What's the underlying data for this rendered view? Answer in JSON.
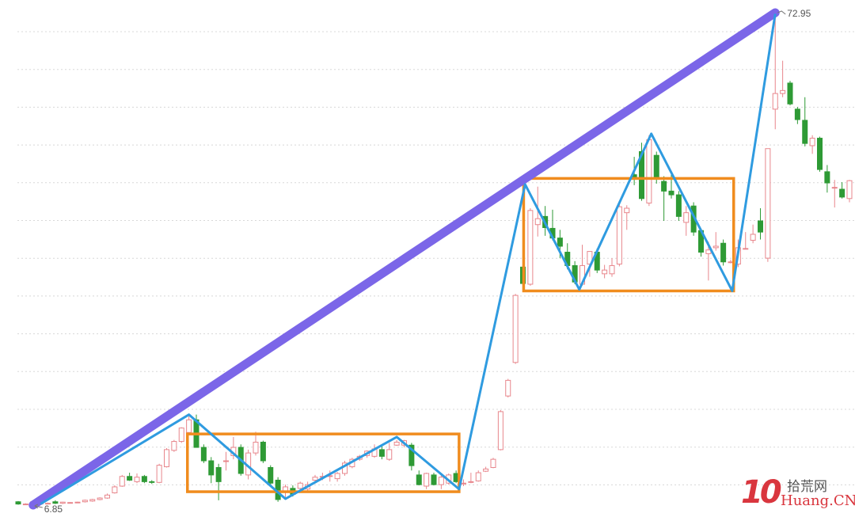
{
  "chart_data": {
    "type": "candlestick",
    "title": "",
    "xlabel": "",
    "ylabel": "",
    "ylim": [
      6.85,
      72.95
    ],
    "grid": true,
    "annotations": {
      "high_label": "72.95",
      "low_label": "6.85",
      "high_index": 102,
      "low_index": 2
    },
    "colors": {
      "up": "#e8868c",
      "down": "#2e9a35",
      "trendline": "#7b66e8",
      "zigzag": "#2f9be0",
      "box": "#f08c1e",
      "grid": "#d8d8d8"
    },
    "candles_ohlc": [
      [
        7.3,
        7.4,
        6.9,
        7.0
      ],
      [
        7.0,
        7.1,
        6.9,
        7.0
      ],
      [
        7.0,
        7.4,
        6.85,
        7.3
      ],
      [
        7.1,
        7.2,
        7.0,
        7.1
      ],
      [
        7.1,
        7.2,
        7.0,
        7.1
      ],
      [
        7.3,
        7.5,
        7.0,
        7.1
      ],
      [
        7.1,
        7.3,
        7.0,
        7.25
      ],
      [
        7.2,
        7.25,
        7.15,
        7.2
      ],
      [
        7.25,
        7.3,
        7.2,
        7.25
      ],
      [
        7.3,
        7.6,
        7.2,
        7.5
      ],
      [
        7.4,
        7.7,
        7.3,
        7.6
      ],
      [
        7.6,
        7.9,
        7.5,
        7.8
      ],
      [
        7.8,
        8.4,
        7.7,
        8.2
      ],
      [
        8.5,
        9.5,
        8.4,
        9.3
      ],
      [
        9.4,
        10.9,
        9.3,
        10.7
      ],
      [
        10.7,
        11.2,
        10.1,
        10.2
      ],
      [
        10.0,
        11.1,
        9.8,
        10.6
      ],
      [
        10.7,
        10.9,
        9.8,
        10.0
      ],
      [
        10.0,
        10.2,
        9.7,
        9.9
      ],
      [
        9.9,
        12.4,
        9.8,
        12.2
      ],
      [
        12.0,
        14.5,
        11.9,
        14.3
      ],
      [
        14.2,
        15.6,
        14.0,
        15.4
      ],
      [
        15.4,
        17.3,
        15.2,
        17.2
      ],
      [
        16.6,
        19.1,
        16.4,
        18.3
      ],
      [
        18.3,
        19.0,
        14.6,
        14.6
      ],
      [
        14.6,
        15.0,
        12.5,
        12.8
      ],
      [
        12.8,
        13.3,
        9.8,
        10.9
      ],
      [
        11.9,
        12.4,
        7.5,
        10.0
      ],
      [
        12.8,
        14.0,
        11.5,
        12.8
      ],
      [
        13.5,
        16.0,
        13.0,
        14.6
      ],
      [
        14.6,
        15.0,
        10.8,
        11.1
      ],
      [
        10.9,
        14.3,
        10.3,
        13.85
      ],
      [
        13.85,
        16.7,
        13.5,
        15.3
      ],
      [
        15.3,
        15.5,
        12.5,
        12.8
      ],
      [
        11.9,
        12.2,
        9.5,
        9.8
      ],
      [
        10.2,
        10.6,
        7.3,
        7.6
      ],
      [
        8.55,
        9.6,
        7.8,
        9.3
      ],
      [
        9.1,
        9.5,
        8.0,
        8.3
      ],
      [
        9.1,
        10.0,
        8.8,
        9.8
      ],
      [
        9.0,
        10.0,
        8.8,
        9.6
      ],
      [
        10.2,
        10.9,
        10.0,
        10.6
      ],
      [
        10.7,
        11.2,
        10.2,
        10.7
      ],
      [
        10.8,
        11.5,
        10.0,
        10.8
      ],
      [
        10.4,
        11.3,
        10.0,
        11.1
      ],
      [
        11.1,
        12.8,
        10.8,
        12.5
      ],
      [
        12.0,
        13.2,
        11.8,
        13.0
      ],
      [
        13.0,
        13.6,
        12.8,
        13.4
      ],
      [
        13.5,
        14.2,
        13.2,
        14.1
      ],
      [
        13.4,
        15.0,
        13.2,
        14.4
      ],
      [
        14.3,
        15.0,
        13.0,
        13.4
      ],
      [
        13.0,
        15.2,
        12.8,
        14.3
      ],
      [
        14.9,
        15.6,
        14.8,
        15.3
      ],
      [
        14.9,
        15.6,
        14.6,
        15.5
      ],
      [
        14.9,
        15.2,
        11.5,
        12.15
      ],
      [
        10.9,
        11.5,
        9.5,
        9.6
      ],
      [
        9.4,
        11.2,
        9.0,
        11.1
      ],
      [
        10.9,
        11.2,
        9.5,
        9.6
      ],
      [
        9.6,
        11.0,
        9.0,
        10.6
      ],
      [
        9.8,
        11.1,
        9.6,
        10.9
      ],
      [
        11.1,
        11.5,
        9.8,
        10.0
      ],
      [
        9.8,
        10.3,
        9.4,
        9.8
      ],
      [
        10.0,
        11.2,
        9.8,
        10.0
      ],
      [
        10.1,
        11.5,
        10.0,
        11.2
      ],
      [
        11.4,
        12.0,
        11.3,
        11.7
      ],
      [
        11.9,
        13.2,
        11.8,
        13.0
      ],
      [
        14.3,
        19.6,
        14.2,
        19.4
      ],
      [
        21.5,
        23.8,
        21.3,
        23.6
      ],
      [
        26.0,
        35.2,
        25.8,
        35.0
      ],
      [
        38.8,
        42.7,
        36.0,
        36.6
      ],
      [
        36.5,
        46.7,
        36.3,
        46.4
      ],
      [
        44.5,
        49.6,
        42.9,
        45.3
      ],
      [
        45.6,
        47.0,
        43.0,
        44.1
      ],
      [
        44.0,
        46.5,
        42.4,
        42.7
      ],
      [
        42.7,
        43.8,
        40.0,
        41.6
      ],
      [
        40.8,
        42.0,
        38.5,
        39.0
      ],
      [
        39.0,
        39.6,
        36.5,
        36.8
      ],
      [
        36.5,
        41.8,
        36.3,
        39.0
      ],
      [
        39.2,
        40.8,
        37.5,
        40.9
      ],
      [
        40.8,
        41.3,
        38.0,
        38.4
      ],
      [
        37.9,
        39.1,
        37.3,
        38.4
      ],
      [
        37.9,
        40.0,
        37.5,
        39.0
      ],
      [
        39.2,
        47.2,
        38.9,
        46.9
      ],
      [
        46.1,
        47.1,
        43.8,
        46.7
      ],
      [
        51.2,
        53.6,
        49.8,
        50.6
      ],
      [
        54.3,
        55.5,
        47.7,
        48.0
      ],
      [
        47.4,
        56.5,
        47.0,
        55.9
      ],
      [
        53.8,
        54.3,
        50.0,
        50.6
      ],
      [
        50.3,
        51.0,
        45.0,
        49.0
      ],
      [
        49.0,
        51.5,
        48.0,
        48.5
      ],
      [
        48.5,
        49.0,
        45.0,
        45.6
      ],
      [
        44.8,
        47.0,
        43.0,
        46.1
      ],
      [
        47.0,
        47.5,
        43.0,
        43.5
      ],
      [
        43.7,
        44.0,
        40.2,
        40.8
      ],
      [
        40.6,
        42.2,
        37.0,
        41.1
      ],
      [
        41.4,
        43.5,
        41.0,
        41.6
      ],
      [
        42.0,
        42.5,
        39.0,
        39.5
      ],
      [
        39.5,
        39.8,
        39.3,
        39.5
      ],
      [
        39.2,
        42.5,
        38.8,
        41.4
      ],
      [
        41.3,
        43.5,
        41.2,
        41.3
      ],
      [
        42.4,
        44.5,
        42.0,
        43.2
      ],
      [
        45.0,
        46.7,
        42.5,
        43.5
      ],
      [
        40.0,
        54.7,
        39.5,
        54.7
      ],
      [
        60.0,
        72.95,
        57.3,
        62.1
      ],
      [
        62.1,
        66.5,
        61.6,
        62.5
      ],
      [
        63.5,
        63.8,
        60.5,
        60.7
      ],
      [
        60.0,
        60.3,
        58.0,
        58.6
      ],
      [
        58.5,
        61.6,
        55.0,
        55.4
      ],
      [
        55.1,
        56.5,
        54.0,
        56.1
      ],
      [
        56.1,
        56.3,
        51.6,
        51.9
      ],
      [
        51.6,
        52.5,
        48.8,
        50.1
      ],
      [
        49.5,
        50.5,
        46.8,
        49.5
      ],
      [
        49.25,
        50.2,
        48.0,
        48.2
      ],
      [
        48.0,
        50.5,
        47.5,
        50.4
      ]
    ],
    "trendline": [
      [
        2,
        6.85
      ],
      [
        102,
        72.95
      ]
    ],
    "zigzag": [
      [
        3,
        7.0
      ],
      [
        23,
        19.0
      ],
      [
        36,
        7.7
      ],
      [
        51,
        16.0
      ],
      [
        59.4,
        9.0
      ],
      [
        68.3,
        49.9
      ],
      [
        75.6,
        35.8
      ],
      [
        85.3,
        56.7
      ],
      [
        96.2,
        35.6
      ],
      [
        102,
        72.8
      ]
    ],
    "boxes": [
      {
        "from_index": 22.8,
        "to_index": 59.4,
        "high": 16.4,
        "low": 8.65
      },
      {
        "from_index": 68.1,
        "to_index": 96.4,
        "high": 50.7,
        "low": 35.6
      }
    ]
  },
  "watermark": {
    "logo": "10",
    "site_cn": "拾荒网",
    "site_en": "Huang.CN"
  }
}
